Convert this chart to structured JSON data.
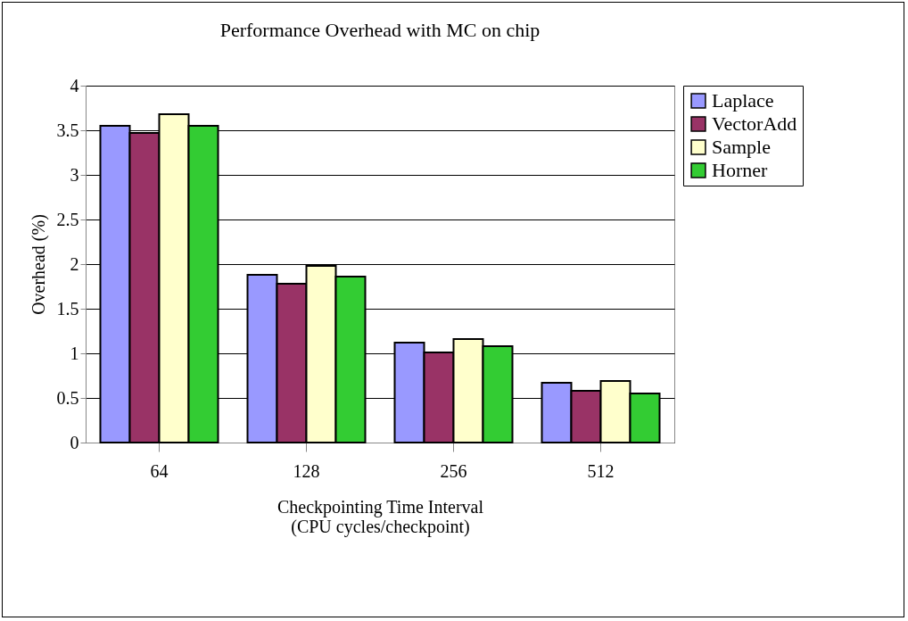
{
  "chart_data": {
    "type": "bar",
    "title": "Performance Overhead with MC on chip",
    "xlabel": "Checkpointing Time Interval\n(CPU cycles/checkpoint)",
    "ylabel": "Overhead (%)",
    "categories": [
      "64",
      "128",
      "256",
      "512"
    ],
    "series": [
      {
        "name": "Laplace",
        "color": "#9999ff",
        "values": [
          3.55,
          1.88,
          1.12,
          0.67
        ]
      },
      {
        "name": "VectorAdd",
        "color": "#993366",
        "values": [
          3.47,
          1.78,
          1.01,
          0.58
        ]
      },
      {
        "name": "Sample",
        "color": "#ffffcc",
        "values": [
          3.68,
          1.98,
          1.16,
          0.69
        ]
      },
      {
        "name": "Horner",
        "color": "#33cc33",
        "values": [
          3.55,
          1.86,
          1.08,
          0.55
        ]
      }
    ],
    "ylim": [
      0,
      4
    ],
    "yticks": [
      0,
      0.5,
      1,
      1.5,
      2,
      2.5,
      3,
      3.5,
      4
    ],
    "grid": "y",
    "legend": "right"
  }
}
